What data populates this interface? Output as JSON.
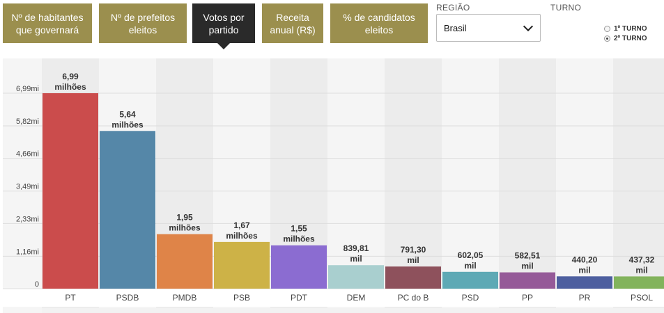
{
  "tabs": [
    {
      "label": "Nº de habitantes que governará",
      "active": false
    },
    {
      "label": "Nº de prefeitos eleitos",
      "active": false
    },
    {
      "label": "Votos por partido",
      "active": true
    },
    {
      "label": "Receita anual (R$)",
      "active": false
    },
    {
      "label": "% de candidatos eleitos",
      "active": false
    }
  ],
  "region": {
    "label": "REGIÃO",
    "selected": "Brasil"
  },
  "turno": {
    "label": "TURNO",
    "options": [
      "1º TURNO",
      "2º TURNO"
    ],
    "selected_index": 1
  },
  "chart_data": {
    "type": "bar",
    "categories": [
      "PT",
      "PSDB",
      "PMDB",
      "PSB",
      "PDT",
      "DEM",
      "PC do B",
      "PSD",
      "PP",
      "PR",
      "PSOL"
    ],
    "values": [
      6990000,
      5640000,
      1950000,
      1670000,
      1550000,
      839810,
      791300,
      602050,
      582510,
      440200,
      437320
    ],
    "value_labels": [
      [
        "6,99",
        "milhões"
      ],
      [
        "5,64",
        "milhões"
      ],
      [
        "1,95",
        "milhões"
      ],
      [
        "1,67",
        "milhões"
      ],
      [
        "1,55",
        "milhões"
      ],
      [
        "839,81",
        "mil"
      ],
      [
        "791,30",
        "mil"
      ],
      [
        "602,05",
        "mil"
      ],
      [
        "582,51",
        "mil"
      ],
      [
        "440,20",
        "mil"
      ],
      [
        "437,32",
        "mil"
      ]
    ],
    "colors": [
      "#cb4c4c",
      "#5587a8",
      "#df8448",
      "#cdb247",
      "#8b6cd1",
      "#a9cfcf",
      "#8e515c",
      "#5ea9b5",
      "#955a98",
      "#4d5f9f",
      "#82b35c"
    ],
    "yticks": [
      0,
      1160000,
      2330000,
      3490000,
      4660000,
      5820000,
      6990000
    ],
    "ytick_labels": [
      "0",
      "1,16mi",
      "2,33mi",
      "3,49mi",
      "4,66mi",
      "5,82mi",
      "6,99mi"
    ],
    "ylim": [
      0,
      6990000
    ],
    "title": "",
    "xlabel": "",
    "ylabel": ""
  }
}
